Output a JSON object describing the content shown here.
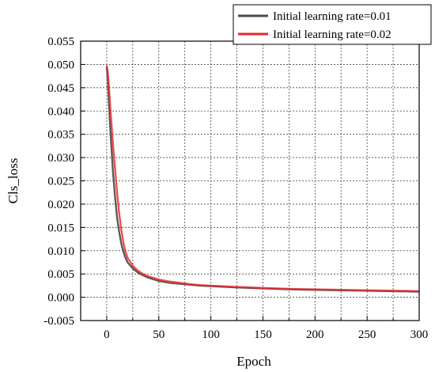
{
  "chart_data": {
    "type": "line",
    "title": "",
    "xlabel": "Epoch",
    "ylabel": "Cls_loss",
    "xlim": [
      -25,
      300
    ],
    "ylim": [
      -0.005,
      0.055
    ],
    "xticks": [
      0,
      50,
      100,
      150,
      200,
      250,
      300
    ],
    "yticks": [
      -0.005,
      0.0,
      0.005,
      0.01,
      0.015,
      0.02,
      0.025,
      0.03,
      0.035,
      0.04,
      0.045,
      0.05,
      0.055
    ],
    "xtick_labels": [
      "0",
      "50",
      "100",
      "150",
      "200",
      "250",
      "300"
    ],
    "ytick_labels": [
      "-0.005",
      "0.000",
      "0.005",
      "0.010",
      "0.015",
      "0.020",
      "0.025",
      "0.030",
      "0.035",
      "0.040",
      "0.045",
      "0.050",
      "0.055"
    ],
    "grid": true,
    "legend_position": "top-right",
    "series": [
      {
        "name": "Initial learning rate=0.01",
        "color": "#4a4a4a",
        "x": [
          0,
          1,
          2,
          4,
          6,
          8,
          10,
          12,
          14,
          16,
          18,
          20,
          25,
          30,
          35,
          40,
          50,
          60,
          70,
          80,
          90,
          100,
          125,
          150,
          175,
          200,
          225,
          250,
          275,
          300
        ],
        "y": [
          0.0495,
          0.047,
          0.042,
          0.034,
          0.027,
          0.0215,
          0.017,
          0.014,
          0.0115,
          0.0098,
          0.0085,
          0.0075,
          0.0062,
          0.0053,
          0.0047,
          0.0042,
          0.0035,
          0.0031,
          0.0029,
          0.0027,
          0.0025,
          0.0024,
          0.0021,
          0.0019,
          0.0017,
          0.0016,
          0.0015,
          0.0014,
          0.0013,
          0.0012
        ]
      },
      {
        "name": "Initial learning rate=0.02",
        "color": "#e8262b",
        "x": [
          0,
          1,
          2,
          4,
          6,
          8,
          10,
          12,
          14,
          16,
          18,
          20,
          25,
          30,
          35,
          40,
          50,
          60,
          70,
          80,
          90,
          100,
          125,
          150,
          175,
          200,
          225,
          250,
          275,
          300
        ],
        "y": [
          0.0498,
          0.0485,
          0.0455,
          0.039,
          0.033,
          0.0275,
          0.0225,
          0.018,
          0.0145,
          0.0118,
          0.0098,
          0.0085,
          0.0068,
          0.0057,
          0.005,
          0.0045,
          0.0038,
          0.0034,
          0.0031,
          0.0028,
          0.0026,
          0.0025,
          0.0022,
          0.002,
          0.0018,
          0.0017,
          0.0016,
          0.0015,
          0.0014,
          0.0013
        ]
      }
    ]
  }
}
